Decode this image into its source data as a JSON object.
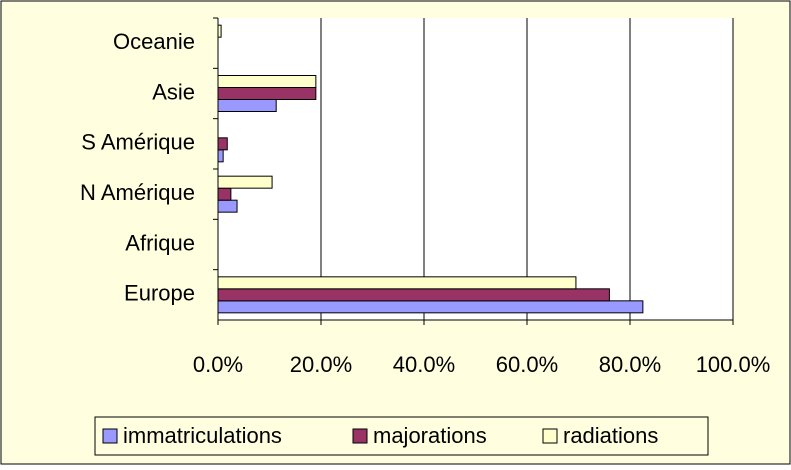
{
  "chart_data": {
    "type": "hbar",
    "categories": [
      "Europe",
      "Afrique",
      "N Amérique",
      "S Amérique",
      "Asie",
      "Oceanie"
    ],
    "series": [
      {
        "name": "immatriculations",
        "color": "#9999ff",
        "values": [
          82.5,
          0,
          3.7,
          1.0,
          11.3,
          0
        ]
      },
      {
        "name": "majorations",
        "color": "#993366",
        "values": [
          76,
          0,
          2.5,
          1.8,
          19,
          0
        ]
      },
      {
        "name": "radiations",
        "color": "#ffffcc",
        "values": [
          69.5,
          0,
          10.5,
          0,
          19,
          0.6
        ]
      }
    ],
    "xlim": [
      0,
      100
    ],
    "xticks": [
      {
        "value": 0,
        "label": "0.0%"
      },
      {
        "value": 20,
        "label": "20.0%"
      },
      {
        "value": 40,
        "label": "40.0%"
      },
      {
        "value": 60,
        "label": "60.0%"
      },
      {
        "value": 80,
        "label": "80.0%"
      },
      {
        "value": 100,
        "label": "100.0%"
      }
    ],
    "grid": true,
    "legend": "bottom"
  }
}
